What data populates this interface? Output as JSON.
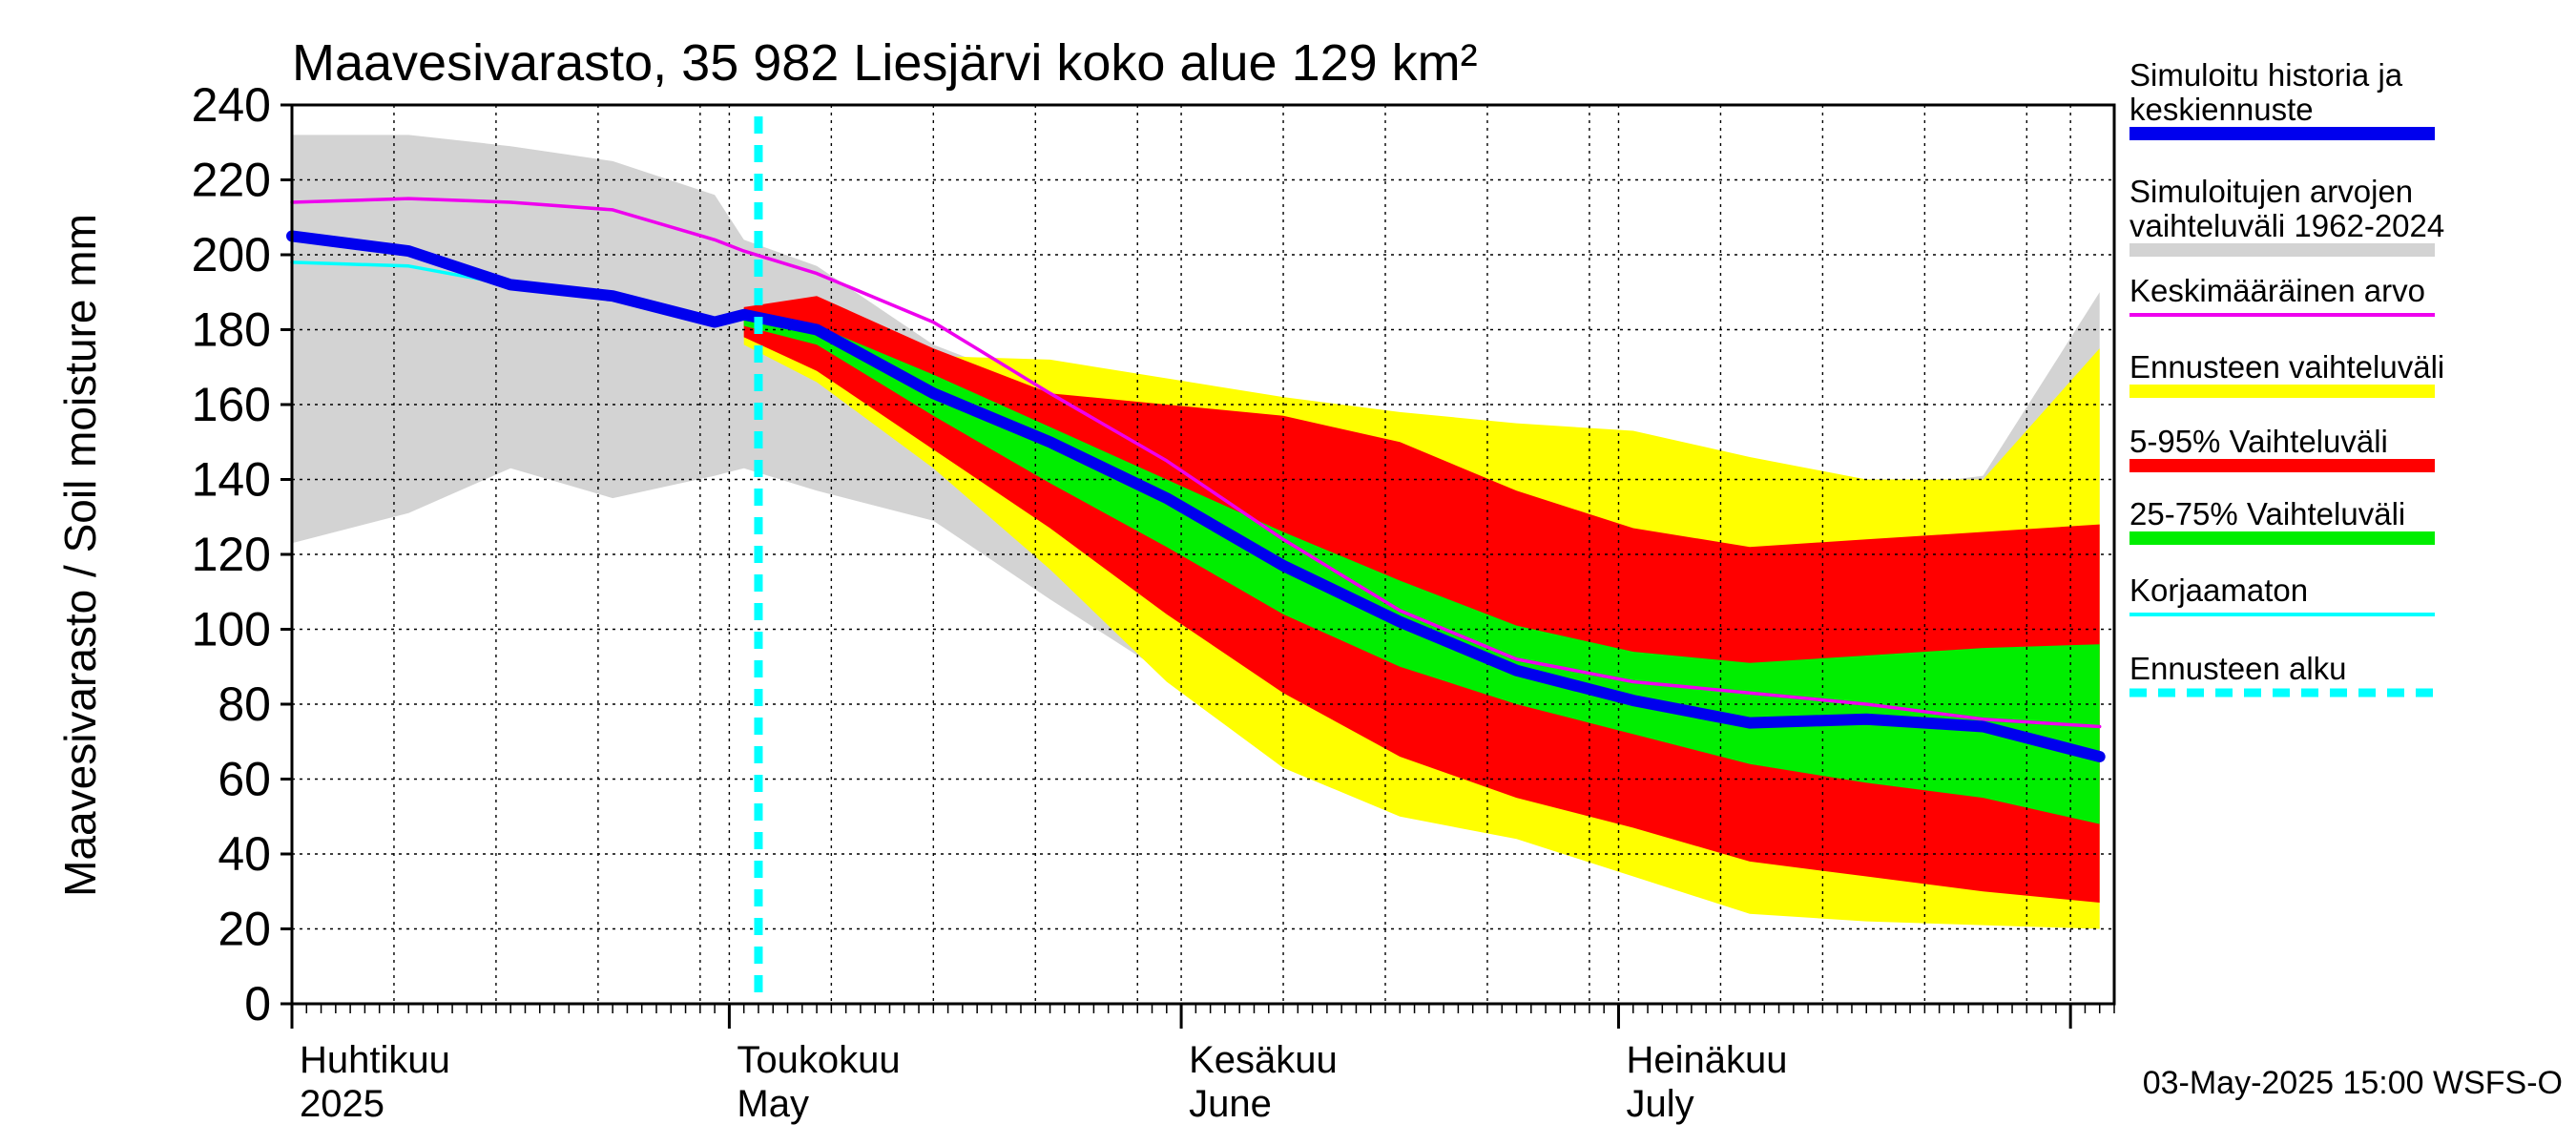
{
  "chart_data": {
    "type": "area",
    "title": "Maavesivarasto, 35 982 Liesjärvi koko alue 129 km²",
    "ylabel": "Maavesivarasto / Soil moisture   mm",
    "ylim": [
      0,
      240
    ],
    "yticks": [
      0,
      20,
      40,
      60,
      80,
      100,
      120,
      140,
      160,
      180,
      200,
      220,
      240
    ],
    "x_start": "2025-04-01",
    "x_end": "2025-08-04",
    "forecast_start": "2025-05-03",
    "months": [
      {
        "date": "2025-04-01",
        "label_fi": "Huhtikuu",
        "label_en": "2025"
      },
      {
        "date": "2025-05-01",
        "label_fi": "Toukokuu",
        "label_en": "May"
      },
      {
        "date": "2025-06-01",
        "label_fi": "Kesäkuu",
        "label_en": "June"
      },
      {
        "date": "2025-07-01",
        "label_fi": "Heinäkuu",
        "label_en": "July"
      }
    ],
    "x_day_offsets": [
      0,
      8,
      15,
      22,
      29,
      31,
      36,
      44,
      52,
      60,
      68,
      76,
      84,
      92,
      100,
      108,
      116,
      124
    ],
    "series": [
      {
        "name": "Simuloitujen arvojen vaihteluväli 1962-2024",
        "color": "#d3d3d3",
        "upper": [
          232,
          232,
          229,
          225,
          216,
          204,
          197,
          176,
          164,
          158,
          154,
          149,
          147,
          140,
          133,
          137,
          141,
          190
        ],
        "lower": [
          123,
          131,
          143,
          135,
          141,
          143,
          137,
          129,
          108,
          88,
          72,
          58,
          55,
          52,
          47,
          42,
          34,
          30
        ]
      },
      {
        "name": "Ennusteen vaihteluväli",
        "color": "#ffff00",
        "upper": [
          null,
          null,
          null,
          null,
          null,
          186,
          182,
          173,
          172,
          167,
          162,
          158,
          155,
          153,
          146,
          140,
          140,
          175
        ],
        "lower": [
          null,
          null,
          null,
          null,
          null,
          176,
          166,
          143,
          116,
          86,
          63,
          50,
          44,
          34,
          24,
          22,
          21,
          20
        ]
      },
      {
        "name": "5-95% Vaihteluväli",
        "color": "#ff0000",
        "upper": [
          null,
          null,
          null,
          null,
          null,
          186,
          189,
          175,
          163,
          160,
          157,
          150,
          137,
          127,
          122,
          124,
          126,
          128
        ],
        "lower": [
          null,
          null,
          null,
          null,
          null,
          178,
          169,
          148,
          127,
          104,
          83,
          66,
          55,
          47,
          38,
          34,
          30,
          27
        ]
      },
      {
        "name": "25-75% Vaihteluväli",
        "color": "#00ee00",
        "upper": [
          null,
          null,
          null,
          null,
          null,
          183,
          181,
          168,
          154,
          140,
          126,
          113,
          101,
          94,
          91,
          93,
          95,
          96
        ],
        "lower": [
          null,
          null,
          null,
          null,
          null,
          181,
          176,
          157,
          139,
          122,
          104,
          90,
          80,
          72,
          64,
          59,
          55,
          48
        ]
      },
      {
        "name": "Keskimääräinen arvo",
        "color": "#ee00ee",
        "values": [
          214,
          215,
          214,
          212,
          204,
          201,
          195,
          182,
          163,
          145,
          124,
          105,
          92,
          86,
          83,
          80,
          76,
          74
        ]
      },
      {
        "name": "Korjaamaton",
        "color": "#00ffff",
        "values": [
          198,
          197,
          192,
          190,
          183,
          184,
          179,
          163,
          150,
          135,
          117,
          102,
          89,
          81,
          75,
          76,
          74,
          67
        ]
      },
      {
        "name": "Simuloitu historia ja keskiennuste",
        "color": "#0000ee",
        "values": [
          205,
          201,
          192,
          189,
          182,
          184,
          180,
          163,
          150,
          135,
          117,
          102,
          89,
          81,
          75,
          76,
          74,
          66
        ]
      }
    ]
  },
  "legend": [
    {
      "label": "Simuloitu historia ja keskiennuste",
      "color": "#0000ee",
      "style": "thick"
    },
    {
      "label": "Simuloitujen arvojen vaihteluväli 1962-2024",
      "color": "#d3d3d3",
      "style": "thick"
    },
    {
      "label": "Keskimääräinen arvo",
      "color": "#ee00ee",
      "style": "thin"
    },
    {
      "label": "Ennusteen vaihteluväli",
      "color": "#ffff00",
      "style": "thick"
    },
    {
      "label": "5-95% Vaihteluväli",
      "color": "#ff0000",
      "style": "thick"
    },
    {
      "label": "25-75% Vaihteluväli",
      "color": "#00ee00",
      "style": "thick"
    },
    {
      "label": "Korjaamaton",
      "color": "#00ffff",
      "style": "thin"
    },
    {
      "label": "Ennusteen alku",
      "color": "#00ffff",
      "style": "dashed"
    }
  ],
  "footer": "03-May-2025 15:00 WSFS-O"
}
